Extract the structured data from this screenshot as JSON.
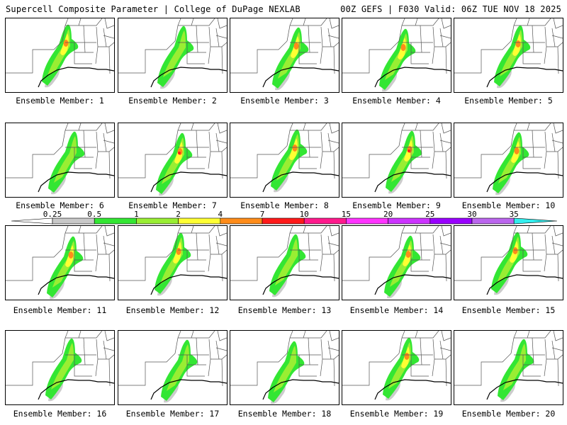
{
  "header": {
    "left": "Supercell Composite Parameter | College of DuPage NEXLAB",
    "right": "00Z GEFS | F030 Valid: 06Z TUE NOV 18 2025"
  },
  "caption_prefix": "Ensemble Member:",
  "members": [
    {
      "number": "1",
      "max_level": 4
    },
    {
      "number": "2",
      "max_level": 3
    },
    {
      "number": "3",
      "max_level": 4
    },
    {
      "number": "4",
      "max_level": 4
    },
    {
      "number": "5",
      "max_level": 4
    },
    {
      "number": "6",
      "max_level": 3
    },
    {
      "number": "7",
      "max_level": 5
    },
    {
      "number": "8",
      "max_level": 4
    },
    {
      "number": "9",
      "max_level": 5
    },
    {
      "number": "10",
      "max_level": 4
    },
    {
      "number": "11",
      "max_level": 4
    },
    {
      "number": "12",
      "max_level": 4
    },
    {
      "number": "13",
      "max_level": 3
    },
    {
      "number": "14",
      "max_level": 4
    },
    {
      "number": "15",
      "max_level": 4
    },
    {
      "number": "16",
      "max_level": 3
    },
    {
      "number": "17",
      "max_level": 3
    },
    {
      "number": "18",
      "max_level": 3
    },
    {
      "number": "19",
      "max_level": 4
    },
    {
      "number": "20",
      "max_level": 3
    }
  ],
  "colorbar": {
    "labels": [
      "0.25",
      "0.5",
      "1",
      "2",
      "4",
      "7",
      "10",
      "15",
      "20",
      "25",
      "30",
      "35"
    ],
    "colors": [
      "#ffffff",
      "#c8c8c8",
      "#33e633",
      "#99ee33",
      "#ffff33",
      "#ff8c1a",
      "#ff1a1a",
      "#ff1a8c",
      "#ff33ff",
      "#cc33ff",
      "#9900ff",
      "#bb66ee",
      "#33eeee"
    ]
  },
  "map_colors": {
    "gray": "#cccccc",
    "green": "#33e633",
    "lightgreen": "#99ee33",
    "yellow": "#ffff33",
    "orange": "#ff8c1a",
    "red": "#ff1a1a",
    "boundary": "#555555",
    "coast": "#000000"
  }
}
